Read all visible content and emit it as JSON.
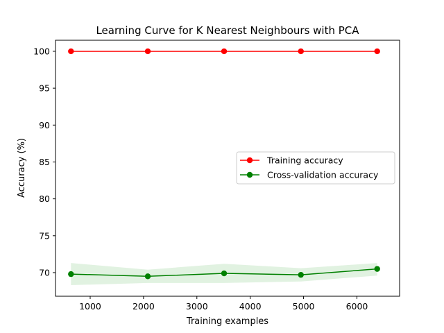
{
  "chart_data": {
    "type": "line",
    "title": "Learning Curve for K Nearest Neighbours with PCA",
    "xlabel": "Training examples",
    "ylabel": "Accuracy (%)",
    "xlim": [
      350,
      6800
    ],
    "ylim": [
      66.8,
      101.5
    ],
    "x_ticks": [
      1000,
      2000,
      3000,
      4000,
      5000,
      6000
    ],
    "y_ticks": [
      70,
      75,
      80,
      85,
      90,
      95,
      100
    ],
    "x": [
      640,
      2080,
      3510,
      4950,
      6380
    ],
    "grid": false,
    "legend_position": "center-right",
    "series": [
      {
        "name": "Training accuracy",
        "color": "#ff0000",
        "values": [
          100,
          100,
          100,
          100,
          100
        ],
        "band_lower": [
          100,
          100,
          100,
          100,
          100
        ],
        "band_upper": [
          100,
          100,
          100,
          100,
          100
        ]
      },
      {
        "name": "Cross-validation accuracy",
        "color": "#008000",
        "band_color": "#c9e8c9",
        "values": [
          69.8,
          69.5,
          69.9,
          69.7,
          70.5
        ],
        "band_lower": [
          68.3,
          68.6,
          68.6,
          68.8,
          69.6
        ],
        "band_upper": [
          71.3,
          70.4,
          71.2,
          70.6,
          71.3
        ]
      }
    ]
  }
}
